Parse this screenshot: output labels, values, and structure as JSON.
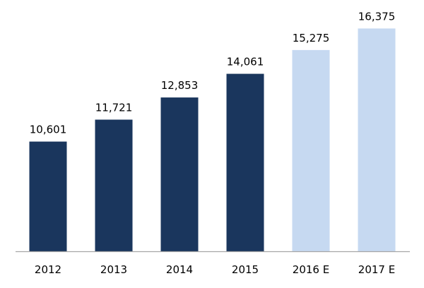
{
  "chart_data": {
    "type": "bar",
    "categories": [
      "2012",
      "2013",
      "2014",
      "2015",
      "2016 E",
      "2017 E"
    ],
    "values": [
      10601,
      11721,
      12853,
      14061,
      15275,
      16375
    ],
    "data_labels": [
      "10,601",
      "11,721",
      "12,853",
      "14,061",
      "15,275",
      "16,375"
    ],
    "estimate": [
      false,
      false,
      false,
      false,
      true,
      true
    ],
    "colors": {
      "actual": "#1a365d",
      "estimate": "#c6d9f1",
      "axis": "#a6a6a6"
    },
    "title": "",
    "xlabel": "",
    "ylabel": "",
    "ylim": [
      5000,
      17000
    ],
    "grid": false,
    "legend": "none"
  }
}
